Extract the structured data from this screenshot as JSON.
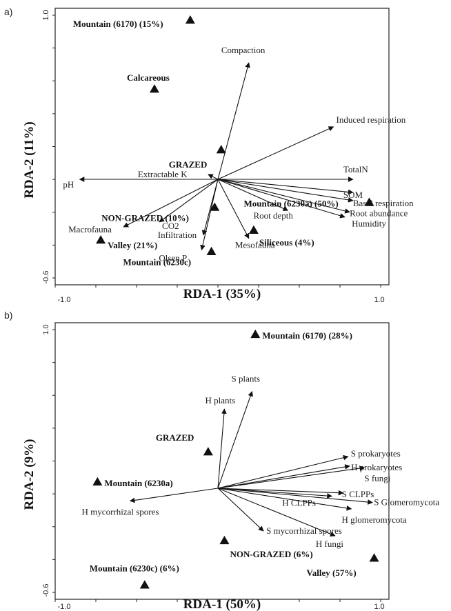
{
  "chart_data": [
    {
      "type": "scatter",
      "subtype": "rda-biplot",
      "panel": "a)",
      "xlabel": "RDA-1 (35%)",
      "ylabel": "RDA-2 (11%)",
      "xlim": [
        -1.0,
        1.0
      ],
      "ylim": [
        -0.6,
        1.0
      ],
      "x_ticks": [
        "-1.0",
        "1.0"
      ],
      "y_ticks": [
        "1.0",
        "-0.6"
      ],
      "vectors": [
        {
          "name": "Compaction",
          "x": 0.19,
          "y": 0.71
        },
        {
          "name": "Induced respiration",
          "x": 0.71,
          "y": 0.32
        },
        {
          "name": "TotalN",
          "x": 0.83,
          "y": 0.0
        },
        {
          "name": "SOM",
          "x": 0.83,
          "y": -0.08
        },
        {
          "name": "Basal respiration",
          "x": 0.83,
          "y": -0.13
        },
        {
          "name": "Root abundance",
          "x": 0.81,
          "y": -0.2
        },
        {
          "name": "Humidity",
          "x": 0.78,
          "y": -0.23
        },
        {
          "name": "Root depth",
          "x": 0.43,
          "y": -0.19
        },
        {
          "name": "Mesofauna",
          "x": 0.19,
          "y": -0.36
        },
        {
          "name": "Olsen P",
          "x": -0.1,
          "y": -0.43
        },
        {
          "name": "Infiltration",
          "x": -0.09,
          "y": -0.34
        },
        {
          "name": "CO2",
          "x": -0.36,
          "y": -0.26
        },
        {
          "name": "Macrofauna",
          "x": -0.58,
          "y": -0.29
        },
        {
          "name": "pH",
          "x": -0.85,
          "y": 0.0
        },
        {
          "name": "Extractable K",
          "x": -0.06,
          "y": 0.03
        }
      ],
      "points": [
        {
          "name": "Mountain (6170) (15%)",
          "x": -0.17,
          "y": 0.97
        },
        {
          "name": "Calcareous",
          "x": -0.39,
          "y": 0.55
        },
        {
          "name": "GRAZED",
          "x": 0.02,
          "y": 0.18
        },
        {
          "name": "NON-GRAZED (10%)",
          "x": -0.02,
          "y": -0.17
        },
        {
          "name": "Mountain (6230a) (50%)",
          "x": 0.93,
          "y": -0.14
        },
        {
          "name": "Siliceous (4%)",
          "x": 0.22,
          "y": -0.31
        },
        {
          "name": "Valley (21%)",
          "x": -0.72,
          "y": -0.37
        },
        {
          "name": "Mountain (6230c)",
          "x": -0.04,
          "y": -0.44
        }
      ]
    },
    {
      "type": "scatter",
      "subtype": "rda-biplot",
      "panel": "b)",
      "xlabel": "RDA-1 (50%)",
      "ylabel": "RDA-2 (9%)",
      "xlim": [
        -1.0,
        1.0
      ],
      "ylim": [
        -0.6,
        1.0
      ],
      "x_ticks": [
        "-1.0",
        "1.0"
      ],
      "y_ticks": [
        "1.0",
        "-0.6"
      ],
      "vectors": [
        {
          "name": "S plants",
          "x": 0.21,
          "y": 0.61
        },
        {
          "name": "H plants",
          "x": 0.04,
          "y": 0.5
        },
        {
          "name": "S prokaryotes",
          "x": 0.8,
          "y": 0.2
        },
        {
          "name": "H prokaryotes",
          "x": 0.81,
          "y": 0.14
        },
        {
          "name": "S fungi",
          "x": 0.9,
          "y": 0.13
        },
        {
          "name": "S CLPPs",
          "x": 0.77,
          "y": -0.03
        },
        {
          "name": "H CLPPs",
          "x": 0.7,
          "y": -0.05
        },
        {
          "name": "S Glomeromycota",
          "x": 0.95,
          "y": -0.09
        },
        {
          "name": "H glomeromycota",
          "x": 0.82,
          "y": -0.13
        },
        {
          "name": "H fungi",
          "x": 0.72,
          "y": -0.3
        },
        {
          "name": "S mycorrhizal spores",
          "x": 0.28,
          "y": -0.27
        },
        {
          "name": "H mycorrhizal spores",
          "x": -0.54,
          "y": -0.08
        }
      ],
      "points": [
        {
          "name": "Mountain (6170) (28%)",
          "x": 0.23,
          "y": 0.97
        },
        {
          "name": "GRAZED",
          "x": -0.06,
          "y": 0.23
        },
        {
          "name": "Mountain (6230a)",
          "x": -0.74,
          "y": 0.04
        },
        {
          "name": "NON-GRAZED (6%)",
          "x": 0.04,
          "y": -0.33
        },
        {
          "name": "Valley (57%)",
          "x": 0.96,
          "y": -0.44
        },
        {
          "name": "Mountain (6230c) (6%)",
          "x": -0.45,
          "y": -0.61
        }
      ]
    }
  ]
}
